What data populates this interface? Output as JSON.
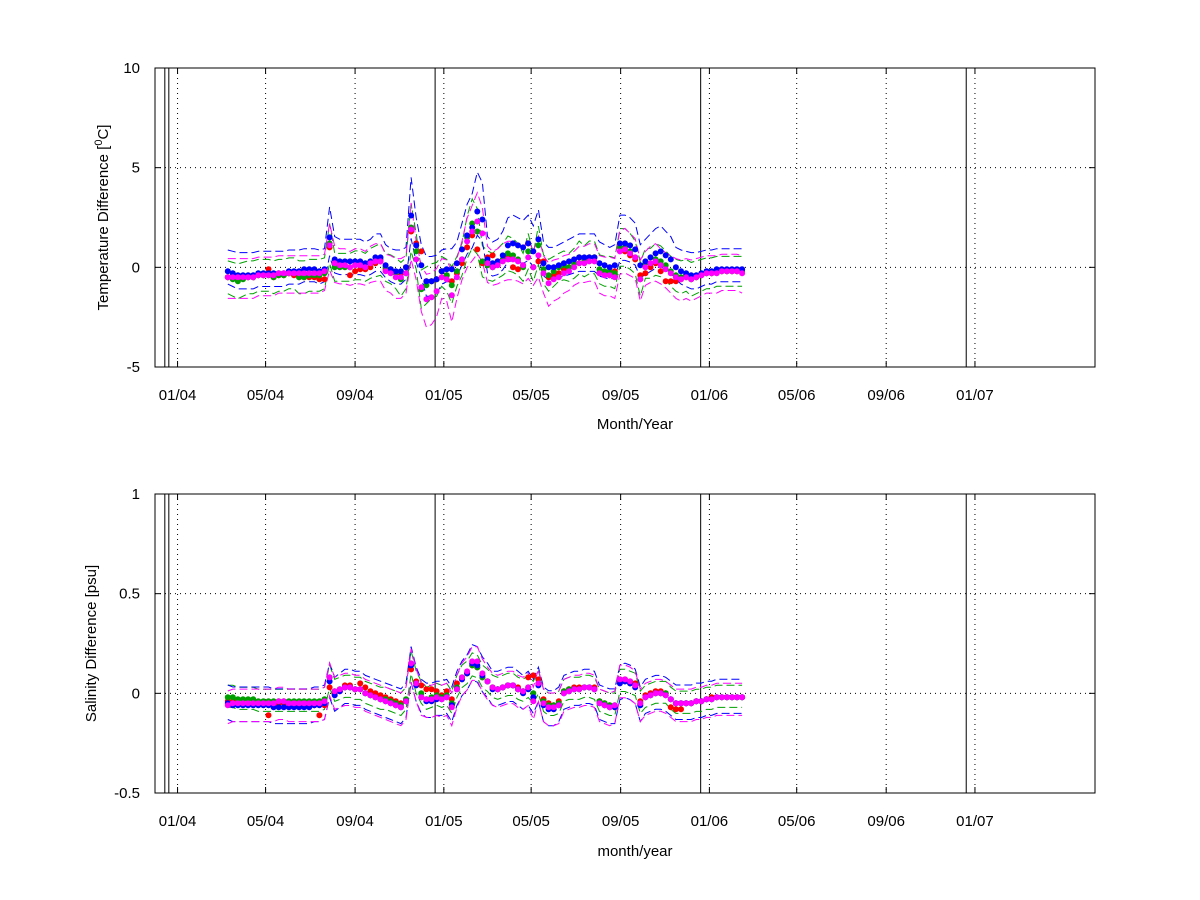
{
  "chart_data": [
    {
      "type": "line",
      "xlabel": "Month/Year",
      "ylabel": "Temperature Difference [",
      "ylabel_sup": "0",
      "ylabel_tail": "C]",
      "ylim": [
        -5,
        10
      ],
      "yticks": [
        -5,
        0,
        5,
        10
      ],
      "xlim": [
        "2003-12-01",
        "2007-06-15"
      ],
      "xticks": [
        "2004-01-01",
        "2004-05-01",
        "2004-09-01",
        "2005-01-01",
        "2005-05-01",
        "2005-09-01",
        "2006-01-01",
        "2006-05-01",
        "2006-09-01",
        "2007-01-01"
      ],
      "xticklabels": [
        "01/04",
        "05/04",
        "09/04",
        "01/05",
        "05/05",
        "09/05",
        "01/06",
        "05/06",
        "09/06",
        "01/07"
      ],
      "x_start": "2004-03-10",
      "x_step_days": 7,
      "year_markers": [
        "2003-12-20",
        "2004-12-20",
        "2005-12-20",
        "2006-12-20"
      ],
      "grid": true,
      "series": [
        {
          "color": "#ff0000",
          "style": "markers",
          "values": [
            -0.5,
            -0.5,
            -0.6,
            -0.5,
            -0.5,
            -0.5,
            -0.4,
            -0.4,
            -0.1,
            -0.5,
            -0.4,
            -0.4,
            -0.3,
            -0.4,
            -0.5,
            -0.5,
            -0.5,
            -0.5,
            -0.6,
            -0.6,
            1.0,
            0.2,
            0.1,
            0.1,
            -0.4,
            -0.2,
            -0.1,
            -0.1,
            0.0,
            0.2,
            0.3,
            -0.1,
            -0.2,
            -0.3,
            -0.3,
            0.0,
            1.8,
            1.2,
            0.8,
            -0.7,
            -0.7,
            -0.6,
            -0.2,
            -0.4,
            -0.7,
            -0.3,
            0.2,
            1.0,
            1.6,
            0.9,
            0.2,
            0.5,
            0.6,
            0.3,
            0.4,
            0.5,
            0.0,
            -0.1,
            0.1,
            1.2,
            0.0,
            0.3,
            0.3,
            -0.5,
            -0.4,
            -0.3,
            -0.1,
            0.0,
            0.2,
            0.5,
            0.4,
            0.5,
            0.5,
            -0.3,
            -0.3,
            -0.4,
            -0.2,
            1.0,
            0.8,
            0.6,
            0.4,
            -0.4,
            -0.3,
            0.0,
            0.2,
            -0.2,
            -0.7,
            -0.7,
            -0.7,
            -0.6,
            -0.5,
            -0.6,
            -0.5,
            -0.4,
            -0.3,
            -0.3,
            -0.2,
            -0.2,
            -0.2,
            -0.2,
            -0.2,
            -0.2
          ]
        },
        {
          "color": "#00a000",
          "style": "markers",
          "values": [
            -0.5,
            -0.6,
            -0.7,
            -0.6,
            -0.5,
            -0.5,
            -0.4,
            -0.4,
            -0.4,
            -0.5,
            -0.4,
            -0.4,
            -0.3,
            -0.3,
            -0.5,
            -0.5,
            -0.4,
            -0.4,
            -0.4,
            -0.3,
            1.2,
            0.0,
            0.0,
            0.0,
            0.0,
            0.1,
            0.1,
            0.0,
            0.2,
            0.3,
            0.4,
            0.0,
            -0.1,
            -0.3,
            -0.6,
            -0.3,
            2.0,
            0.8,
            -1.1,
            -0.9,
            -0.7,
            -0.6,
            -0.2,
            -0.4,
            -0.9,
            -0.2,
            0.4,
            1.5,
            2.2,
            1.8,
            0.3,
            0.1,
            0.0,
            0.2,
            0.4,
            0.7,
            0.6,
            0.4,
            0.0,
            0.8,
            0.0,
            1.1,
            -0.1,
            -0.4,
            -0.2,
            0.0,
            0.1,
            0.0,
            0.2,
            0.5,
            0.3,
            0.5,
            0.5,
            -0.1,
            -0.2,
            -0.2,
            -0.3,
            1.0,
            1.0,
            0.8,
            0.5,
            -0.6,
            0.2,
            0.2,
            0.4,
            0.3,
            0.1,
            -0.2,
            -0.4,
            -0.5,
            -0.4,
            -0.6,
            -0.5,
            -0.4,
            -0.3,
            -0.3,
            -0.2,
            -0.2,
            -0.2,
            -0.2,
            -0.2,
            -0.2
          ]
        },
        {
          "color": "#0000ff",
          "style": "markers",
          "values": [
            -0.2,
            -0.3,
            -0.4,
            -0.4,
            -0.4,
            -0.4,
            -0.3,
            -0.3,
            -0.3,
            -0.3,
            -0.3,
            -0.3,
            -0.2,
            -0.2,
            -0.2,
            -0.1,
            -0.1,
            -0.1,
            -0.2,
            -0.1,
            1.5,
            0.4,
            0.3,
            0.3,
            0.3,
            0.3,
            0.3,
            0.2,
            0.3,
            0.5,
            0.5,
            0.1,
            -0.1,
            -0.2,
            -0.2,
            0.0,
            2.6,
            1.1,
            0.1,
            -0.7,
            -0.7,
            -0.6,
            -0.2,
            -0.1,
            -0.1,
            0.2,
            0.9,
            1.6,
            2.0,
            2.8,
            2.4,
            0.4,
            0.2,
            0.3,
            0.6,
            1.1,
            1.2,
            1.1,
            1.0,
            1.2,
            0.8,
            1.4,
            0.2,
            0.0,
            0.0,
            0.1,
            0.2,
            0.3,
            0.4,
            0.5,
            0.5,
            0.5,
            0.5,
            0.2,
            0.1,
            0.0,
            0.1,
            1.2,
            1.2,
            1.1,
            0.9,
            0.1,
            0.3,
            0.5,
            0.7,
            0.8,
            0.6,
            0.4,
            0.0,
            -0.2,
            -0.3,
            -0.4,
            -0.4,
            -0.3,
            -0.2,
            -0.2,
            -0.1,
            -0.1,
            -0.1,
            -0.1,
            -0.1,
            -0.1
          ]
        },
        {
          "color": "#ff00ff",
          "style": "markers",
          "values": [
            -0.5,
            -0.5,
            -0.5,
            -0.5,
            -0.5,
            -0.5,
            -0.4,
            -0.4,
            -0.4,
            -0.4,
            -0.3,
            -0.3,
            -0.3,
            -0.3,
            -0.3,
            -0.3,
            -0.3,
            -0.3,
            -0.3,
            -0.2,
            1.1,
            0.2,
            0.1,
            0.1,
            0.0,
            0.1,
            0.1,
            0.0,
            0.2,
            0.3,
            0.3,
            -0.2,
            -0.3,
            -0.5,
            -0.5,
            -0.3,
            1.9,
            0.4,
            -1.0,
            -1.6,
            -1.5,
            -1.2,
            -0.5,
            -0.6,
            -1.4,
            -0.5,
            0.4,
            1.3,
            1.8,
            2.3,
            1.7,
            0.2,
            0.0,
            0.1,
            0.3,
            0.4,
            0.4,
            0.3,
            0.1,
            0.5,
            0.0,
            0.6,
            -0.3,
            -0.8,
            -0.6,
            -0.5,
            -0.3,
            -0.2,
            0.0,
            0.2,
            0.2,
            0.3,
            0.3,
            -0.3,
            -0.4,
            -0.4,
            -0.5,
            0.8,
            0.9,
            0.7,
            0.5,
            -0.6,
            0.0,
            0.2,
            0.3,
            0.1,
            -0.1,
            -0.3,
            -0.5,
            -0.6,
            -0.5,
            -0.6,
            -0.5,
            -0.4,
            -0.3,
            -0.3,
            -0.3,
            -0.2,
            -0.2,
            -0.2,
            -0.2,
            -0.3
          ]
        }
      ],
      "envelopes": [
        {
          "color": "#00a000",
          "base": 1,
          "lower": -0.7,
          "upper": 0.7
        },
        {
          "color": "#0000ff",
          "base": 2,
          "lower": -0.6,
          "upper": 1.0
        },
        {
          "color": "#ff00ff",
          "base": 3,
          "lower": -0.9,
          "upper": 0.8
        }
      ]
    },
    {
      "type": "line",
      "xlabel": "month/year",
      "ylabel": "Salinity Difference [psu]",
      "ylim": [
        -0.5,
        1
      ],
      "yticks": [
        -0.5,
        0,
        0.5,
        1
      ],
      "xlim": [
        "2003-12-01",
        "2007-06-15"
      ],
      "xticks": [
        "2004-01-01",
        "2004-05-01",
        "2004-09-01",
        "2005-01-01",
        "2005-05-01",
        "2005-09-01",
        "2006-01-01",
        "2006-05-01",
        "2006-09-01",
        "2007-01-01"
      ],
      "xticklabels": [
        "01/04",
        "05/04",
        "09/04",
        "01/05",
        "05/05",
        "09/05",
        "01/06",
        "05/06",
        "09/06",
        "01/07"
      ],
      "x_start": "2004-03-10",
      "x_step_days": 7,
      "year_markers": [
        "2003-12-20",
        "2004-12-20",
        "2005-12-20",
        "2006-12-20"
      ],
      "grid": true,
      "series": [
        {
          "color": "#ff0000",
          "style": "markers",
          "values": [
            -0.04,
            -0.04,
            -0.05,
            -0.05,
            -0.05,
            -0.05,
            -0.05,
            -0.05,
            -0.11,
            -0.06,
            -0.05,
            -0.05,
            -0.05,
            -0.05,
            -0.06,
            -0.06,
            -0.06,
            -0.06,
            -0.11,
            -0.06,
            0.03,
            0.0,
            0.01,
            0.04,
            0.04,
            0.02,
            0.05,
            0.03,
            0.01,
            0.0,
            -0.01,
            -0.02,
            -0.03,
            -0.04,
            -0.05,
            -0.04,
            0.12,
            0.06,
            0.04,
            0.02,
            0.02,
            0.01,
            -0.01,
            0.01,
            -0.03,
            0.05,
            0.08,
            0.1,
            0.14,
            0.13,
            0.08,
            0.06,
            0.03,
            0.02,
            0.03,
            0.04,
            0.04,
            0.03,
            0.01,
            0.08,
            0.09,
            0.07,
            -0.03,
            -0.05,
            -0.06,
            -0.04,
            0.01,
            0.02,
            0.03,
            0.03,
            0.03,
            0.03,
            0.03,
            -0.04,
            -0.05,
            -0.06,
            -0.07,
            0.07,
            0.07,
            0.06,
            0.05,
            -0.04,
            -0.01,
            0.0,
            0.01,
            0.01,
            0.0,
            -0.07,
            -0.08,
            -0.08,
            -0.05,
            -0.05,
            -0.04,
            -0.04,
            -0.03,
            -0.02,
            -0.02,
            -0.02,
            -0.02,
            -0.02,
            -0.02,
            -0.02
          ]
        },
        {
          "color": "#00a000",
          "style": "markers",
          "values": [
            -0.02,
            -0.02,
            -0.03,
            -0.03,
            -0.03,
            -0.03,
            -0.04,
            -0.04,
            -0.04,
            -0.04,
            -0.04,
            -0.04,
            -0.04,
            -0.04,
            -0.04,
            -0.04,
            -0.04,
            -0.04,
            -0.04,
            -0.03,
            0.08,
            0.01,
            0.02,
            0.03,
            0.03,
            0.02,
            0.02,
            0.0,
            -0.01,
            -0.02,
            -0.03,
            -0.03,
            -0.04,
            -0.05,
            -0.06,
            -0.03,
            0.15,
            0.05,
            0.0,
            -0.03,
            -0.02,
            -0.01,
            -0.02,
            -0.01,
            -0.05,
            0.03,
            0.08,
            0.1,
            0.14,
            0.13,
            0.08,
            0.06,
            0.03,
            0.02,
            0.03,
            0.04,
            0.04,
            0.02,
            0.01,
            0.03,
            0.0,
            0.05,
            -0.04,
            -0.06,
            -0.06,
            -0.05,
            0.01,
            0.02,
            0.02,
            0.02,
            0.03,
            0.03,
            0.02,
            -0.04,
            -0.05,
            -0.06,
            -0.06,
            0.06,
            0.06,
            0.05,
            0.04,
            -0.05,
            -0.02,
            -0.01,
            0.0,
            0.0,
            0.0,
            -0.03,
            -0.05,
            -0.05,
            -0.05,
            -0.05,
            -0.04,
            -0.04,
            -0.03,
            -0.03,
            -0.02,
            -0.02,
            -0.02,
            -0.02,
            -0.02,
            -0.02
          ]
        },
        {
          "color": "#0000ff",
          "style": "markers",
          "values": [
            -0.05,
            -0.06,
            -0.06,
            -0.06,
            -0.06,
            -0.06,
            -0.06,
            -0.06,
            -0.06,
            -0.07,
            -0.07,
            -0.07,
            -0.07,
            -0.07,
            -0.07,
            -0.07,
            -0.07,
            -0.06,
            -0.06,
            -0.05,
            0.06,
            -0.01,
            0.01,
            0.03,
            0.03,
            0.02,
            0.02,
            0.0,
            -0.01,
            -0.02,
            -0.03,
            -0.04,
            -0.05,
            -0.06,
            -0.07,
            -0.04,
            0.14,
            0.04,
            -0.02,
            -0.04,
            -0.04,
            -0.03,
            -0.03,
            -0.02,
            -0.06,
            0.02,
            0.07,
            0.1,
            0.15,
            0.14,
            0.09,
            0.06,
            0.02,
            0.02,
            0.03,
            0.04,
            0.04,
            0.02,
            0.0,
            0.02,
            -0.02,
            0.04,
            -0.06,
            -0.08,
            -0.08,
            -0.06,
            0.0,
            0.01,
            0.02,
            0.02,
            0.03,
            0.03,
            0.02,
            -0.05,
            -0.06,
            -0.07,
            -0.07,
            0.05,
            0.06,
            0.05,
            0.03,
            -0.06,
            -0.02,
            -0.01,
            0.0,
            0.0,
            -0.01,
            -0.03,
            -0.05,
            -0.05,
            -0.05,
            -0.05,
            -0.04,
            -0.04,
            -0.03,
            -0.03,
            -0.02,
            -0.02,
            -0.02,
            -0.02,
            -0.02,
            -0.02
          ]
        },
        {
          "color": "#ff00ff",
          "style": "markers",
          "values": [
            -0.06,
            -0.05,
            -0.05,
            -0.05,
            -0.05,
            -0.05,
            -0.05,
            -0.05,
            -0.05,
            -0.05,
            -0.04,
            -0.04,
            -0.05,
            -0.05,
            -0.05,
            -0.05,
            -0.05,
            -0.05,
            -0.05,
            -0.04,
            0.08,
            0.01,
            0.02,
            0.03,
            0.03,
            0.02,
            0.02,
            0.0,
            -0.01,
            -0.02,
            -0.03,
            -0.04,
            -0.05,
            -0.06,
            -0.07,
            -0.04,
            0.15,
            0.05,
            -0.02,
            -0.03,
            -0.03,
            -0.02,
            -0.03,
            -0.02,
            -0.07,
            0.02,
            0.08,
            0.11,
            0.16,
            0.16,
            0.1,
            0.06,
            0.03,
            0.02,
            0.03,
            0.04,
            0.04,
            0.02,
            0.01,
            0.03,
            -0.04,
            0.05,
            -0.05,
            -0.07,
            -0.07,
            -0.06,
            0.0,
            0.01,
            0.02,
            0.02,
            0.03,
            0.03,
            0.02,
            -0.05,
            -0.06,
            -0.07,
            -0.06,
            0.07,
            0.07,
            0.06,
            0.04,
            -0.05,
            -0.02,
            -0.01,
            0.0,
            0.0,
            -0.01,
            -0.03,
            -0.05,
            -0.05,
            -0.05,
            -0.05,
            -0.04,
            -0.04,
            -0.03,
            -0.03,
            -0.02,
            -0.02,
            -0.02,
            -0.02,
            -0.02,
            -0.02
          ]
        }
      ],
      "envelopes": [
        {
          "color": "#00a000",
          "base": 1,
          "lower": -0.05,
          "upper": 0.06
        },
        {
          "color": "#0000ff",
          "base": 2,
          "lower": -0.08,
          "upper": 0.09
        },
        {
          "color": "#ff00ff",
          "base": 3,
          "lower": -0.09,
          "upper": 0.07
        }
      ]
    }
  ]
}
